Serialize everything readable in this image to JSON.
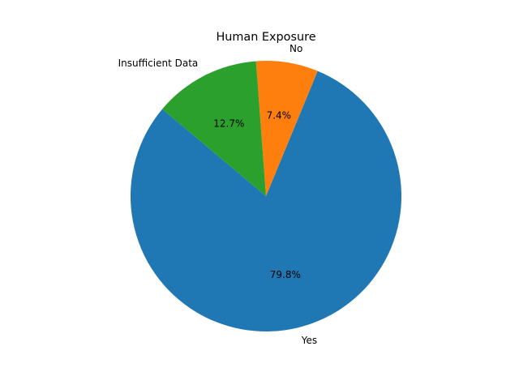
{
  "chart_data": {
    "type": "pie",
    "title": "Human Exposure",
    "slices": [
      {
        "label": "Yes",
        "value": 79.8,
        "pct_label": "79.8%",
        "color": "#1f77b4"
      },
      {
        "label": "No",
        "value": 7.4,
        "pct_label": "7.4%",
        "color": "#ff7f0e"
      },
      {
        "label": "Insufficient Data",
        "value": 12.7,
        "pct_label": "12.7%",
        "color": "#2ca02c"
      }
    ],
    "start_angle_deg": 140,
    "direction": "counterclockwise",
    "legend": "none"
  }
}
